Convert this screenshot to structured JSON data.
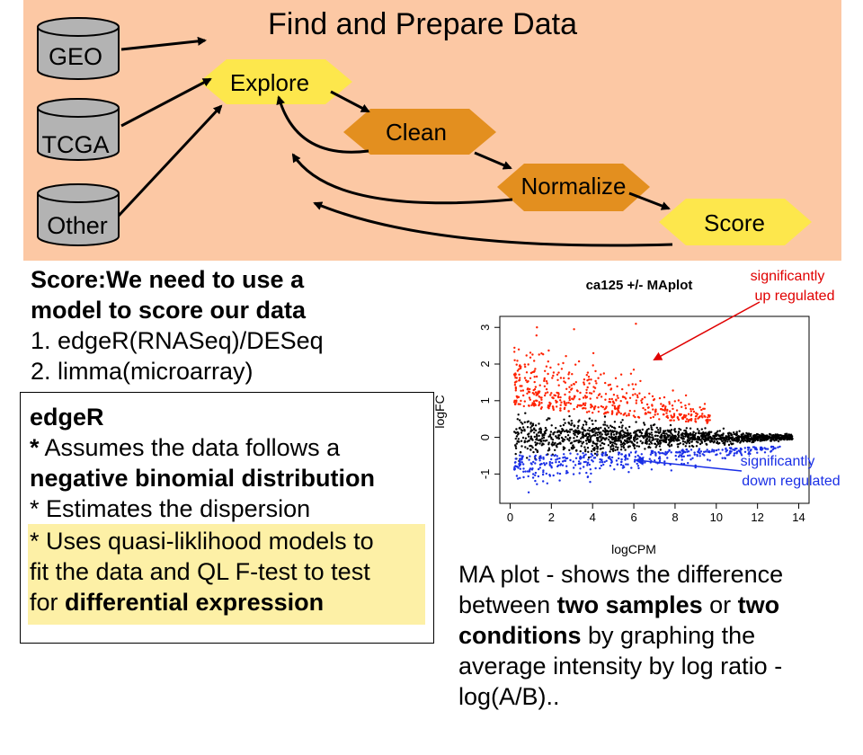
{
  "flow": {
    "title": "Find and Prepare Data",
    "sources": [
      "GEO",
      "TCGA",
      "Other"
    ],
    "steps": [
      "Explore",
      "Clean",
      "Normalize",
      "Score"
    ],
    "colors": {
      "panel": "#fcc8a4",
      "explore": "#fde74c",
      "clean": "#e38f1f",
      "normalize": "#e38f1f",
      "score": "#fde74c",
      "db": "#b3b3b3"
    }
  },
  "score": {
    "heading_line1": "Score:We need to use a",
    "heading_line2": "model to score our data",
    "item1": "1. edgeR(RNASeq)/DESeq",
    "item2": "2. limma(microarray)"
  },
  "edger": {
    "title": "edgeR",
    "l1_star": "*",
    "l1_text": " Assumes the data follows a",
    "l2_bold": "negative binomial distribution",
    "l3": "* Estimates the dispersion",
    "l4": "* Uses quasi-liklihood models to",
    "l5": "fit the data and QL F-test to test",
    "l6_pre": "for ",
    "l6_bold": "differential expression",
    "highlight_color": "#fdf0a6"
  },
  "chart_data": {
    "type": "scatter",
    "title": "ca125 +/- MAplot",
    "xlabel": "logCPM",
    "ylabel": "logFC",
    "xlim": [
      -0.5,
      14.5
    ],
    "ylim": [
      -1.8,
      3.3
    ],
    "xticks": [
      "0",
      "2",
      "4",
      "6",
      "8",
      "10",
      "12",
      "14"
    ],
    "yticks": [
      "-1",
      "0",
      "1",
      "2",
      "3"
    ],
    "series": [
      {
        "role": "not significant",
        "color": "#000000"
      },
      {
        "role": "up",
        "color": "#ff2200"
      },
      {
        "role": "down",
        "color": "#1a2fe6"
      }
    ],
    "annotations": {
      "up_line1": "significantly",
      "up_line2": "up regulated",
      "down_line1": "significantly",
      "down_line2": "down regulated"
    }
  },
  "ma_description": {
    "l1": "MA plot - shows the difference",
    "l2_a": "between ",
    "l2_b": "two samples",
    "l2_c": " or ",
    "l2_d": "two",
    "l3_a": "conditions",
    "l3_b": " by graphing the",
    "l4": "average intensity by log ratio -",
    "l5": "log(A/B).."
  }
}
